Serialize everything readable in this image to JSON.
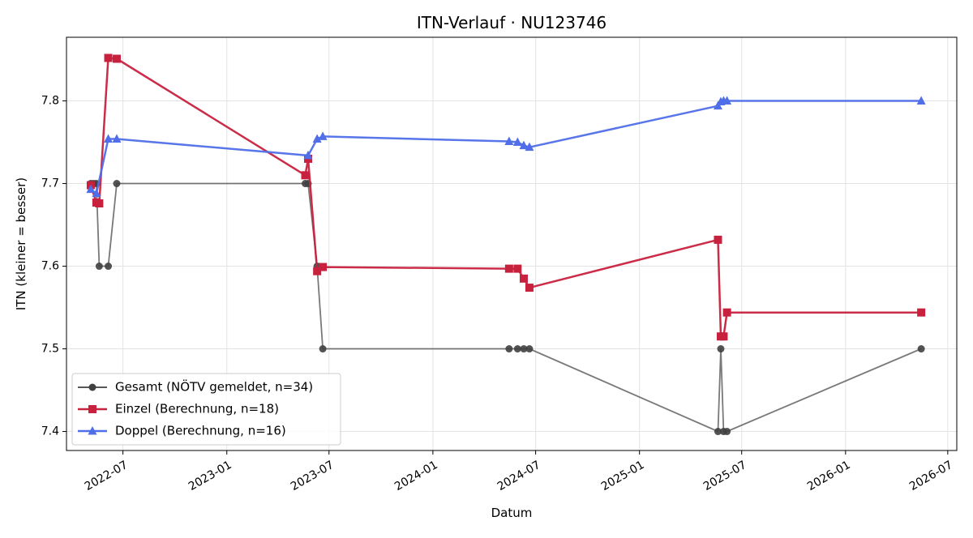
{
  "chart_data": {
    "type": "line",
    "title": "ITN-Verlauf · NU123746",
    "xlabel": "Datum",
    "ylabel": "ITN  (kleiner = besser)",
    "x_axis_type": "date",
    "xlim": [
      "2022-03-23",
      "2026-07-17"
    ],
    "ylim": [
      7.377,
      7.877
    ],
    "x_ticks": [
      "2022-07-01",
      "2023-01-01",
      "2023-07-01",
      "2024-01-01",
      "2024-07-01",
      "2025-01-01",
      "2025-07-01",
      "2026-01-01",
      "2026-07-01"
    ],
    "x_tick_labels": [
      "2022-07",
      "2023-01",
      "2023-07",
      "2024-01",
      "2024-07",
      "2025-01",
      "2025-07",
      "2026-01",
      "2026-07"
    ],
    "y_ticks": [
      7.4,
      7.5,
      7.6,
      7.7,
      7.8
    ],
    "y_tick_labels": [
      "7.4",
      "7.5",
      "7.6",
      "7.7",
      "7.8"
    ],
    "grid": true,
    "legend_position": "lower-left",
    "series": [
      {
        "name": "Gesamt (NÖTV gemeldet, n=34)",
        "color": "#404040",
        "marker": "circle",
        "points": [
          {
            "x": "2022-05-05",
            "y": 7.7
          },
          {
            "x": "2022-05-10",
            "y": 7.7
          },
          {
            "x": "2022-05-15",
            "y": 7.7
          },
          {
            "x": "2022-05-20",
            "y": 7.6
          },
          {
            "x": "2022-06-05",
            "y": 7.6
          },
          {
            "x": "2022-06-20",
            "y": 7.7
          },
          {
            "x": "2023-05-20",
            "y": 7.7
          },
          {
            "x": "2023-05-25",
            "y": 7.7
          },
          {
            "x": "2023-06-10",
            "y": 7.6
          },
          {
            "x": "2023-06-20",
            "y": 7.5
          },
          {
            "x": "2024-05-15",
            "y": 7.5
          },
          {
            "x": "2024-05-30",
            "y": 7.5
          },
          {
            "x": "2024-06-10",
            "y": 7.5
          },
          {
            "x": "2024-06-20",
            "y": 7.5
          },
          {
            "x": "2025-05-20",
            "y": 7.4
          },
          {
            "x": "2025-05-25",
            "y": 7.5
          },
          {
            "x": "2025-05-30",
            "y": 7.4
          },
          {
            "x": "2025-06-05",
            "y": 7.4
          },
          {
            "x": "2026-05-15",
            "y": 7.5
          }
        ]
      },
      {
        "name": "Einzel (Berechnung, n=18)",
        "color": "#c8213e",
        "marker": "square",
        "points": [
          {
            "x": "2022-05-05",
            "y": 7.698
          },
          {
            "x": "2022-05-15",
            "y": 7.677
          },
          {
            "x": "2022-05-20",
            "y": 7.676
          },
          {
            "x": "2022-06-05",
            "y": 7.852
          },
          {
            "x": "2022-06-20",
            "y": 7.851
          },
          {
            "x": "2023-05-20",
            "y": 7.71
          },
          {
            "x": "2023-05-25",
            "y": 7.73
          },
          {
            "x": "2023-06-10",
            "y": 7.594
          },
          {
            "x": "2023-06-20",
            "y": 7.599
          },
          {
            "x": "2024-05-15",
            "y": 7.597
          },
          {
            "x": "2024-05-30",
            "y": 7.597
          },
          {
            "x": "2024-06-10",
            "y": 7.585
          },
          {
            "x": "2024-06-20",
            "y": 7.574
          },
          {
            "x": "2025-05-20",
            "y": 7.632
          },
          {
            "x": "2025-05-25",
            "y": 7.515
          },
          {
            "x": "2025-05-30",
            "y": 7.515
          },
          {
            "x": "2025-06-05",
            "y": 7.544
          },
          {
            "x": "2026-05-15",
            "y": 7.544
          }
        ]
      },
      {
        "name": "Doppel (Berechnung, n=16)",
        "color": "#4f6ee8",
        "marker": "triangle",
        "points": [
          {
            "x": "2022-05-05",
            "y": 7.693
          },
          {
            "x": "2022-05-15",
            "y": 7.688
          },
          {
            "x": "2022-06-05",
            "y": 7.754
          },
          {
            "x": "2022-06-20",
            "y": 7.754
          },
          {
            "x": "2023-05-25",
            "y": 7.734
          },
          {
            "x": "2023-06-10",
            "y": 7.754
          },
          {
            "x": "2023-06-20",
            "y": 7.757
          },
          {
            "x": "2024-05-15",
            "y": 7.751
          },
          {
            "x": "2024-05-30",
            "y": 7.75
          },
          {
            "x": "2024-06-10",
            "y": 7.746
          },
          {
            "x": "2024-06-20",
            "y": 7.744
          },
          {
            "x": "2025-05-20",
            "y": 7.794
          },
          {
            "x": "2025-05-25",
            "y": 7.799
          },
          {
            "x": "2025-05-30",
            "y": 7.8
          },
          {
            "x": "2025-06-05",
            "y": 7.8
          },
          {
            "x": "2026-05-15",
            "y": 7.8
          }
        ]
      }
    ]
  }
}
